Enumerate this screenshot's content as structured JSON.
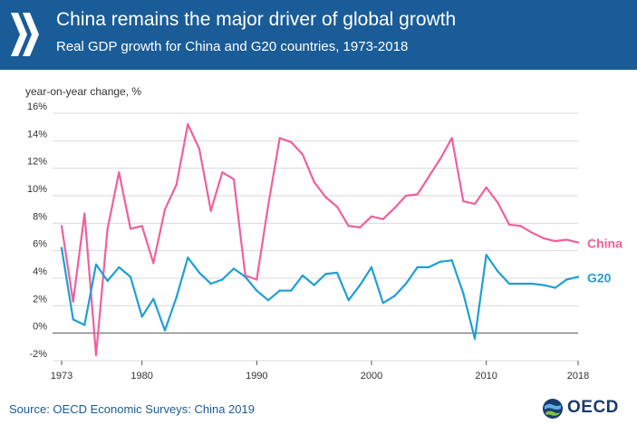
{
  "header": {
    "title": "China remains the major driver of global growth",
    "subtitle": "Real GDP growth for China and G20 countries, 1973-2018",
    "logo_icon": "chevron-logo-icon"
  },
  "source": "Source: OECD Economic Surveys: China 2019",
  "oecd_logo": {
    "icon": "globe-icon",
    "text": "OECD"
  },
  "colors": {
    "header_bg": "#1a5c97",
    "china": "#f0609c",
    "g20": "#1f9fd4"
  },
  "chart_data": {
    "type": "line",
    "ylabel": "year-on-year change, %",
    "xlim": [
      1973,
      2018
    ],
    "ylim": [
      -2,
      16
    ],
    "x_ticks": [
      1973,
      1980,
      1990,
      2000,
      2010,
      2018
    ],
    "x_tick_labels": [
      "1973",
      "1980",
      "1990",
      "2000",
      "2010",
      "2018"
    ],
    "y_ticks": [
      -2,
      0,
      2,
      4,
      6,
      8,
      10,
      12,
      14,
      16
    ],
    "y_tick_labels": [
      "-2%",
      "0%",
      "2%",
      "4%",
      "6%",
      "8%",
      "10%",
      "12%",
      "14%",
      "16%"
    ],
    "grid": true,
    "legend": "inline-right",
    "x": [
      1973,
      1974,
      1975,
      1976,
      1977,
      1978,
      1979,
      1980,
      1981,
      1982,
      1983,
      1984,
      1985,
      1986,
      1987,
      1988,
      1989,
      1990,
      1991,
      1992,
      1993,
      1994,
      1995,
      1996,
      1997,
      1998,
      1999,
      2000,
      2001,
      2002,
      2003,
      2004,
      2005,
      2006,
      2007,
      2008,
      2009,
      2010,
      2011,
      2012,
      2013,
      2014,
      2015,
      2016,
      2017,
      2018
    ],
    "series": [
      {
        "name": "China",
        "color": "#f0609c",
        "values": [
          7.8,
          2.3,
          8.7,
          -1.6,
          7.6,
          11.7,
          7.6,
          7.8,
          5.1,
          9.0,
          10.8,
          15.2,
          13.4,
          8.9,
          11.7,
          11.2,
          4.2,
          3.9,
          9.3,
          14.2,
          13.9,
          13.0,
          11.0,
          9.9,
          9.2,
          7.8,
          7.7,
          8.5,
          8.3,
          9.1,
          10.0,
          10.1,
          11.4,
          12.7,
          14.2,
          9.6,
          9.4,
          10.6,
          9.5,
          7.9,
          7.8,
          7.3,
          6.9,
          6.7,
          6.8,
          6.6
        ]
      },
      {
        "name": "G20",
        "color": "#1f9fd4",
        "values": [
          6.2,
          1.0,
          0.6,
          5.0,
          3.8,
          4.8,
          4.1,
          1.2,
          2.5,
          0.2,
          2.6,
          5.5,
          4.4,
          3.6,
          3.9,
          4.7,
          4.1,
          3.1,
          2.4,
          3.1,
          3.1,
          4.2,
          3.5,
          4.3,
          4.4,
          2.4,
          3.5,
          4.8,
          2.2,
          2.7,
          3.6,
          4.8,
          4.8,
          5.2,
          5.3,
          2.9,
          -0.4,
          5.7,
          4.5,
          3.6,
          3.6,
          3.6,
          3.5,
          3.3,
          3.9,
          4.1
        ]
      }
    ]
  }
}
